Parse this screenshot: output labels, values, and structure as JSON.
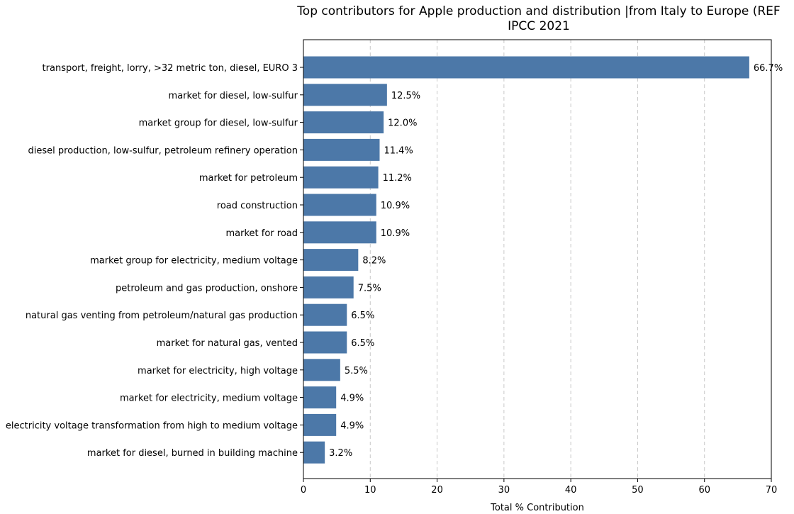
{
  "chart_data": {
    "type": "bar",
    "orientation": "horizontal",
    "title": "Top contributors for Apple production and distribution |from Italy to Europe (REF",
    "subtitle": "IPCC 2021",
    "xlabel": "Total % Contribution",
    "ylabel": "",
    "xlim": [
      0,
      70
    ],
    "xticks": [
      0,
      10,
      20,
      30,
      40,
      50,
      60,
      70
    ],
    "grid": "vertical dashed",
    "bar_color": "#4c78a8",
    "categories": [
      "transport, freight, lorry, >32 metric ton, diesel, EURO 3",
      "market for diesel, low-sulfur",
      "market group for diesel, low-sulfur",
      "diesel production, low-sulfur, petroleum refinery operation",
      "market for petroleum",
      "road construction",
      "market for road",
      "market group for electricity, medium voltage",
      "petroleum and gas production, onshore",
      "natural gas venting from petroleum/natural gas production",
      "market for natural gas, vented",
      "market for electricity, high voltage",
      "market for electricity, medium voltage",
      "electricity voltage transformation from high to medium voltage",
      "market for diesel, burned in building machine"
    ],
    "values": [
      66.7,
      12.5,
      12.0,
      11.4,
      11.2,
      10.9,
      10.9,
      8.2,
      7.5,
      6.5,
      6.5,
      5.5,
      4.9,
      4.9,
      3.2
    ],
    "value_labels": [
      "66.7%",
      "12.5%",
      "12.0%",
      "11.4%",
      "11.2%",
      "10.9%",
      "10.9%",
      "8.2%",
      "7.5%",
      "6.5%",
      "6.5%",
      "5.5%",
      "4.9%",
      "4.9%",
      "3.2%"
    ]
  }
}
